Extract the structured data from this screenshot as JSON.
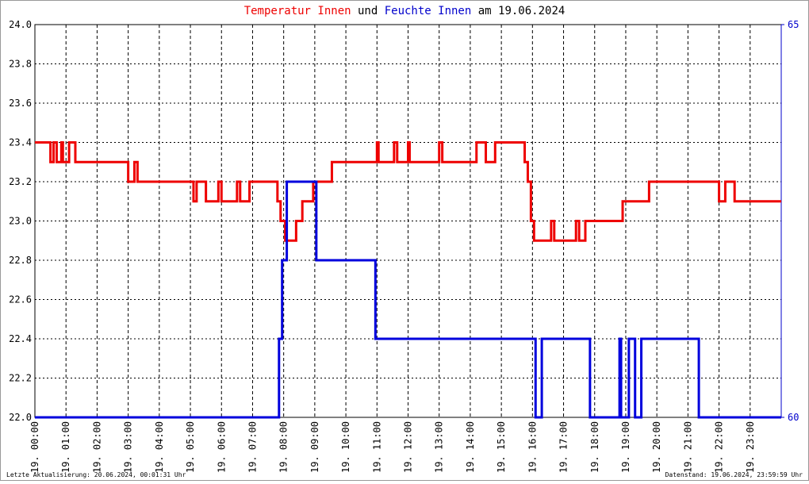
{
  "chart_data": {
    "type": "line",
    "title_connector": "und",
    "title_suffix": "am 19.06.2024",
    "footer_left": "Letzte Aktualisierung: 20.06.2024, 00:01:31 Uhr",
    "footer_right": "Datenstand: 19.06.2024, 23:59:59 Uhr",
    "xlim": [
      0,
      24
    ],
    "xticks": [
      {
        "value": 0,
        "label": "19. 00:00"
      },
      {
        "value": 1,
        "label": "19. 01:00"
      },
      {
        "value": 2,
        "label": "19. 02:00"
      },
      {
        "value": 3,
        "label": "19. 03:00"
      },
      {
        "value": 4,
        "label": "19. 04:00"
      },
      {
        "value": 5,
        "label": "19. 05:00"
      },
      {
        "value": 6,
        "label": "19. 06:00"
      },
      {
        "value": 7,
        "label": "19. 07:00"
      },
      {
        "value": 8,
        "label": "19. 08:00"
      },
      {
        "value": 9,
        "label": "19. 09:00"
      },
      {
        "value": 10,
        "label": "19. 10:00"
      },
      {
        "value": 11,
        "label": "19. 11:00"
      },
      {
        "value": 12,
        "label": "19. 12:00"
      },
      {
        "value": 13,
        "label": "19. 13:00"
      },
      {
        "value": 14,
        "label": "19. 14:00"
      },
      {
        "value": 15,
        "label": "19. 15:00"
      },
      {
        "value": 16,
        "label": "19. 16:00"
      },
      {
        "value": 17,
        "label": "19. 17:00"
      },
      {
        "value": 18,
        "label": "19. 18:00"
      },
      {
        "value": 19,
        "label": "19. 19:00"
      },
      {
        "value": 20,
        "label": "19. 20:00"
      },
      {
        "value": 21,
        "label": "19. 21:00"
      },
      {
        "value": 22,
        "label": "19. 22:00"
      },
      {
        "value": 23,
        "label": "19. 23:00"
      }
    ],
    "ylim": [
      22,
      24
    ],
    "yticks": [
      {
        "value": 22,
        "label": "22.0"
      },
      22.2,
      22.4,
      22.6,
      22.8,
      {
        "value": 23,
        "label": "23.0"
      },
      23.2,
      23.4,
      23.6,
      23.8,
      {
        "value": 24,
        "label": "24.0"
      }
    ],
    "y2lim": [
      60,
      65
    ],
    "y2ticks": [
      60,
      65
    ],
    "y2color": "#0000cc",
    "grid": true,
    "series": [
      {
        "name": "Temperatur Innen",
        "color": "#ee0000",
        "x": [
          0,
          0.5,
          0.5,
          0.6,
          0.6,
          0.7,
          0.7,
          0.85,
          0.85,
          0.9,
          0.9,
          1.1,
          1.1,
          1.3,
          1.3,
          3.0,
          3.0,
          3.2,
          3.2,
          3.3,
          3.3,
          5.1,
          5.1,
          5.2,
          5.2,
          5.5,
          5.5,
          5.9,
          5.9,
          6.0,
          6.0,
          6.5,
          6.5,
          6.6,
          6.6,
          6.9,
          6.9,
          7.8,
          7.8,
          7.9,
          7.9,
          8.05,
          8.05,
          8.4,
          8.4,
          8.6,
          8.6,
          8.95,
          8.95,
          9.55,
          9.55,
          11.0,
          11.0,
          11.05,
          11.05,
          11.55,
          11.55,
          11.65,
          11.65,
          12.0,
          12.0,
          12.05,
          12.05,
          13.0,
          13.0,
          13.1,
          13.1,
          14.2,
          14.2,
          14.5,
          14.5,
          14.8,
          14.8,
          15.75,
          15.75,
          15.85,
          15.85,
          15.95,
          15.95,
          16.05,
          16.05,
          16.6,
          16.6,
          16.7,
          16.7,
          17.4,
          17.4,
          17.5,
          17.5,
          17.7,
          17.7,
          18.9,
          18.9,
          19.75,
          19.75,
          22.0,
          22.0,
          22.2,
          22.2,
          22.5,
          22.5,
          24.0
        ],
        "values": [
          23.4,
          23.4,
          23.3,
          23.3,
          23.4,
          23.4,
          23.3,
          23.3,
          23.4,
          23.4,
          23.3,
          23.3,
          23.4,
          23.4,
          23.3,
          23.3,
          23.2,
          23.2,
          23.3,
          23.3,
          23.2,
          23.2,
          23.1,
          23.1,
          23.2,
          23.2,
          23.1,
          23.1,
          23.2,
          23.2,
          23.1,
          23.1,
          23.2,
          23.2,
          23.1,
          23.1,
          23.2,
          23.2,
          23.1,
          23.1,
          23.0,
          23.0,
          22.9,
          22.9,
          23.0,
          23.0,
          23.1,
          23.1,
          23.2,
          23.2,
          23.3,
          23.3,
          23.4,
          23.4,
          23.3,
          23.3,
          23.4,
          23.4,
          23.3,
          23.3,
          23.4,
          23.4,
          23.3,
          23.3,
          23.4,
          23.4,
          23.3,
          23.3,
          23.4,
          23.4,
          23.3,
          23.3,
          23.4,
          23.4,
          23.3,
          23.3,
          23.2,
          23.2,
          23.0,
          23.0,
          22.9,
          22.9,
          23.0,
          23.0,
          22.9,
          22.9,
          23.0,
          23.0,
          22.9,
          22.9,
          23.0,
          23.0,
          23.1,
          23.1,
          23.2,
          23.2,
          23.1,
          23.1,
          23.2,
          23.2,
          23.1,
          23.1
        ]
      },
      {
        "name": "Feuchte Innen",
        "color": "#0000dd",
        "axis": "y2",
        "x": [
          0,
          7.85,
          7.85,
          7.95,
          7.95,
          8.1,
          8.1,
          9.05,
          9.05,
          10.95,
          10.95,
          16.1,
          16.1,
          16.3,
          16.3,
          17.85,
          17.85,
          18.8,
          18.8,
          18.85,
          18.85,
          19.1,
          19.1,
          19.3,
          19.3,
          19.5,
          19.5,
          21.35,
          21.35,
          24
        ],
        "values": [
          60,
          60,
          61,
          61,
          62,
          62,
          63,
          63,
          62,
          62,
          61,
          61,
          60,
          60,
          61,
          61,
          60,
          60,
          61,
          61,
          60,
          60,
          61,
          61,
          60,
          60,
          61,
          61,
          60,
          60
        ]
      }
    ]
  }
}
